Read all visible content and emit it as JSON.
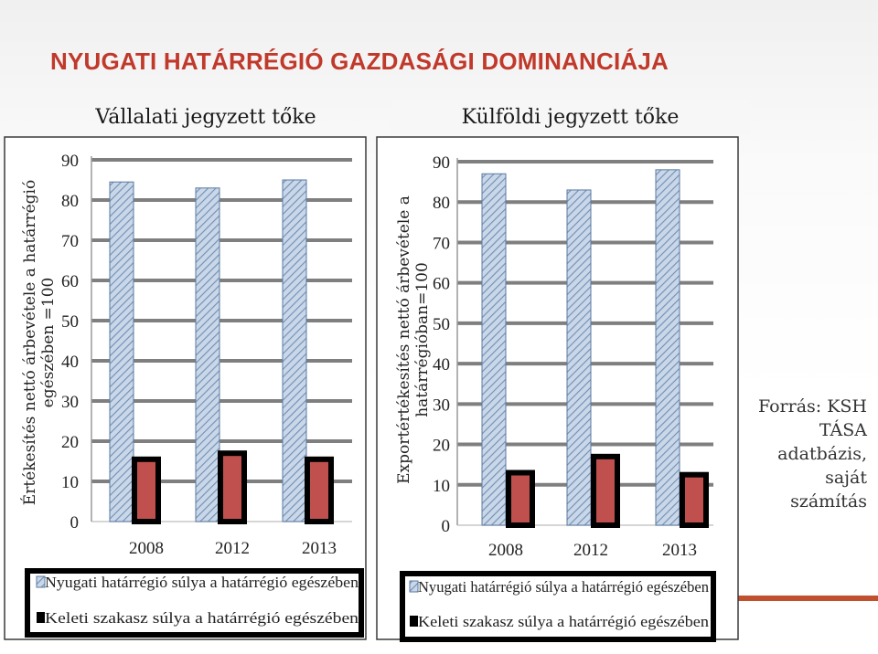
{
  "title": "NYUGATI HATÁRRÉGIÓ GAZDASÁGI DOMINANCIÁJA",
  "source_lines": [
    "Forrás: KSH",
    "TÁSA",
    "adatbázis,",
    "saját",
    "számítás"
  ],
  "colors": {
    "title": "#c0392b",
    "west_bar": "#b7c9df",
    "west_hatch": "#6f8eb4",
    "east_bar": "#c0504d",
    "east_border": "#000000",
    "accent_strip": "#c0502e"
  },
  "chart_data": [
    {
      "type": "bar",
      "subtitle": "Vállalati jegyzett tőke",
      "ylabel_lines": [
        "Értékesítés nettó árbevétele a határrégió",
        "egészében =100"
      ],
      "categories": [
        "2008",
        "2012",
        "2013"
      ],
      "ylim": [
        0,
        90
      ],
      "yticks": [
        "0",
        "10",
        "20",
        "30",
        "40",
        "50",
        "60",
        "70",
        "80",
        "90"
      ],
      "grid": true,
      "legend_position": "bottom",
      "series": [
        {
          "name": "Nyugati határrégió súlya a határrégió egészében",
          "values": [
            84.5,
            83,
            85
          ]
        },
        {
          "name": "Keleti szakasz súlya a határrégió egészében",
          "values": [
            15.5,
            17,
            15.5
          ]
        }
      ]
    },
    {
      "type": "bar",
      "subtitle": "Külföldi jegyzett tőke",
      "ylabel_lines": [
        "Exportértékesítés nettó árbevétele a",
        "határrégióban=100"
      ],
      "categories": [
        "2008",
        "2012",
        "2013"
      ],
      "ylim": [
        0,
        90
      ],
      "yticks": [
        "0",
        "10",
        "20",
        "30",
        "40",
        "50",
        "60",
        "70",
        "80",
        "90"
      ],
      "grid": true,
      "legend_position": "bottom",
      "series": [
        {
          "name": "Nyugati határrégió súlya a határrégió egészében",
          "values": [
            87,
            83,
            88
          ]
        },
        {
          "name": "Keleti szakasz súlya a határrégió egészében",
          "values": [
            13,
            17,
            12.5
          ]
        }
      ]
    }
  ]
}
